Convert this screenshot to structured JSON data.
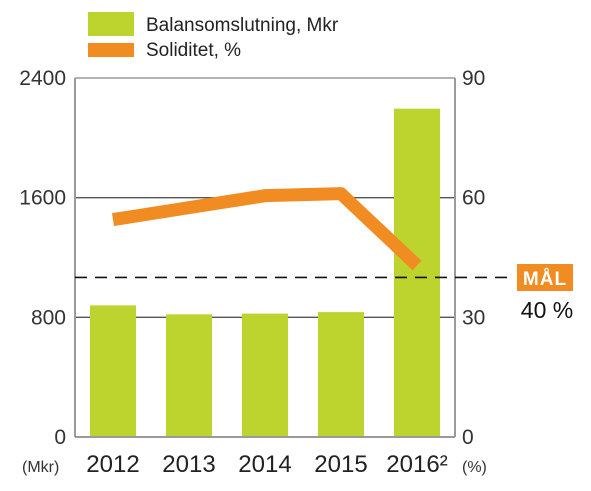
{
  "chart_data": {
    "type": "bar",
    "categories": [
      "2012",
      "2013",
      "2014",
      "2015",
      "2016²"
    ],
    "series": [
      {
        "name": "Balansomslutning, Mkr",
        "type": "bar",
        "axis": "left",
        "values": [
          880,
          820,
          825,
          835,
          2195
        ]
      },
      {
        "name": "Soliditet, %",
        "type": "line",
        "axis": "right",
        "values": [
          54.5,
          57.5,
          60.5,
          61,
          43
        ]
      }
    ],
    "y_left": {
      "ticks": [
        0,
        800,
        1600,
        2400
      ],
      "tick_labels": [
        "0",
        "800",
        "1600",
        "2400"
      ],
      "ylim": [
        0,
        2400
      ],
      "unit_label": "(Mkr)"
    },
    "y_right": {
      "ticks": [
        0,
        30,
        60,
        90
      ],
      "tick_labels": [
        "0",
        "30",
        "60",
        "90"
      ],
      "ylim": [
        0,
        90
      ],
      "unit_label": "(%)"
    },
    "target": {
      "value": 40,
      "axis": "right",
      "badge": "MÅL",
      "label": "40 %"
    },
    "grid": true,
    "legend_position": "top-left",
    "colors": {
      "bar": "#bed42e",
      "line": "#f18c22",
      "axis": "#9a9a9a",
      "grid": "#555555",
      "badge": "#f18c22"
    }
  }
}
